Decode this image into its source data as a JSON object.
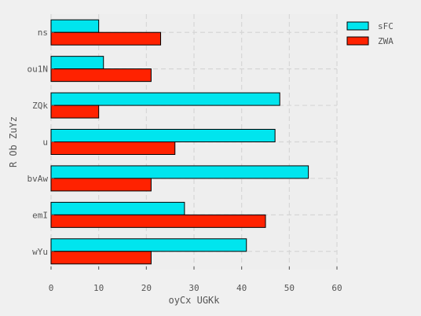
{
  "chart_data": {
    "type": "bar",
    "orientation": "horizontal",
    "title": "",
    "xlabel": "oyCx UGKk",
    "ylabel": "R Ob ZuYz",
    "categories": [
      "ns",
      "ou1N",
      "ZQk",
      "u",
      "bvAw",
      "emI",
      "wYu"
    ],
    "series": [
      {
        "name": "sFC",
        "color": "#00e5ee",
        "values": [
          10,
          11,
          48,
          47,
          54,
          28,
          41
        ]
      },
      {
        "name": "ZWA",
        "color": "#ff2200",
        "values": [
          23,
          21,
          10,
          26,
          21,
          45,
          21
        ]
      }
    ],
    "xlim": [
      0,
      60
    ],
    "xticks": [
      0,
      10,
      20,
      30,
      40,
      50,
      60
    ],
    "grid": true,
    "legend_position": "top-right",
    "plot_background": "#eeeeee",
    "figure_background": "#f0f0f0"
  }
}
